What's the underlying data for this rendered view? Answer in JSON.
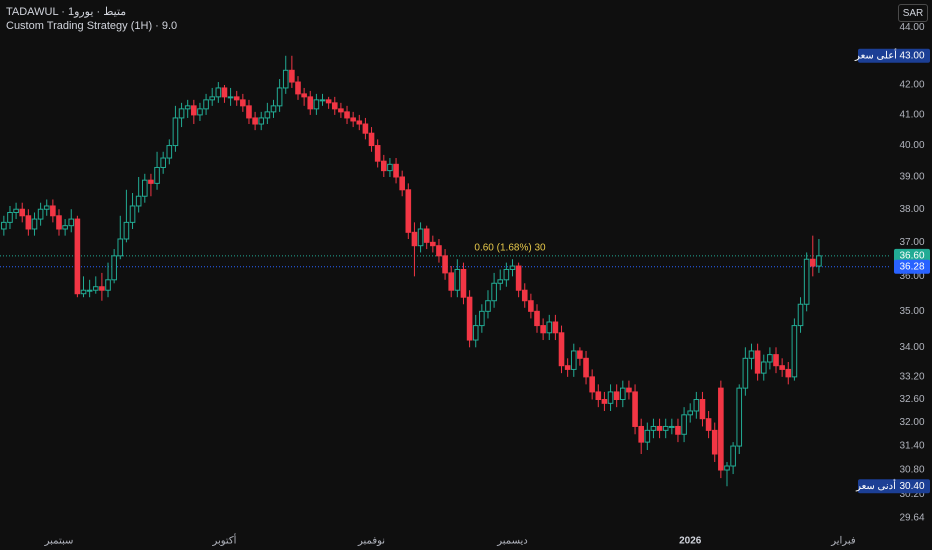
{
  "header": {
    "symbol": "TADAWUL · متيط · يورو1",
    "subtitle": "Custom Trading Strategy (1H) · 9.0",
    "button": "SAR"
  },
  "chart_data": {
    "type": "candlestick",
    "log": true,
    "up_color": "#22ab94",
    "down_color": "#f23645",
    "ylim": [
      29.3,
      44.4
    ],
    "xlim": [
      -0.3,
      144.6
    ],
    "yticks": [
      {
        "value": 44,
        "label": "44.00"
      },
      {
        "value": 43,
        "label": "43.00"
      },
      {
        "value": 42,
        "label": "42.00"
      },
      {
        "value": 41,
        "label": "41.00"
      },
      {
        "value": 40,
        "label": "40.00"
      },
      {
        "value": 39,
        "label": "39.00"
      },
      {
        "value": 38,
        "label": "38.00"
      },
      {
        "value": 37,
        "label": "37.00"
      },
      {
        "value": 36,
        "label": "36.00"
      },
      {
        "value": 35,
        "label": "35.00"
      },
      {
        "value": 34,
        "label": "34.00"
      },
      {
        "value": 33.2,
        "label": "33.20"
      },
      {
        "value": 32.6,
        "label": "32.60"
      },
      {
        "value": 32,
        "label": "32.00"
      },
      {
        "value": 31.4,
        "label": "31.40"
      },
      {
        "value": 30.8,
        "label": "30.80"
      },
      {
        "value": 30.2,
        "label": "30.20"
      },
      {
        "value": 29.64,
        "label": "29.64"
      }
    ],
    "xticks": [
      {
        "value": 9,
        "label": "سبتمبر"
      },
      {
        "value": 36,
        "label": "أكتوبر"
      },
      {
        "value": 60,
        "label": "نوفمبر"
      },
      {
        "value": 83,
        "label": "ديسمبر"
      },
      {
        "value": 112,
        "label": "2026"
      },
      {
        "value": 137,
        "label": "فبراير"
      }
    ],
    "markers": [
      {
        "value": 43,
        "label": "43.00",
        "tag": "أعلى سعر",
        "color": "#1c3f95"
      },
      {
        "value": 30.4,
        "label": "30.40",
        "tag": "أدنى سعر",
        "color": "#1c3f95"
      },
      {
        "value": 36.6,
        "label": "36.60",
        "color": "#22ab94"
      },
      {
        "value": 36.28,
        "label": "36.28",
        "color": "#2962ff"
      }
    ],
    "annotation": "0.60 (1.68%) 30",
    "open": [
      37.4,
      37.6,
      37.9,
      38.0,
      37.8,
      37.4,
      37.7,
      38.0,
      38.1,
      37.8,
      37.4,
      37.5,
      37.7,
      35.5,
      35.6,
      35.6,
      35.7,
      35.6,
      35.9,
      36.6,
      37.1,
      37.6,
      38.1,
      38.4,
      38.9,
      38.8,
      39.3,
      39.6,
      40.0,
      40.9,
      41.2,
      41.3,
      41.0,
      41.2,
      41.5,
      41.6,
      41.9,
      41.6,
      41.6,
      41.5,
      41.3,
      40.9,
      40.7,
      40.9,
      41.1,
      41.3,
      41.9,
      42.5,
      42.1,
      41.7,
      41.6,
      41.2,
      41.5,
      41.5,
      41.4,
      41.2,
      41.1,
      40.9,
      40.8,
      40.7,
      40.4,
      40.0,
      39.5,
      39.2,
      39.4,
      39.0,
      38.6,
      37.3,
      36.9,
      37.4,
      37.0,
      36.9,
      36.6,
      36.1,
      35.6,
      36.2,
      35.4,
      34.2,
      34.6,
      35.0,
      35.3,
      35.8,
      35.9,
      36.2,
      36.3,
      35.6,
      35.3,
      35.0,
      34.6,
      34.4,
      34.7,
      34.4,
      33.5,
      33.4,
      33.9,
      33.7,
      33.2,
      32.8,
      32.6,
      32.5,
      32.8,
      32.6,
      32.9,
      32.8,
      31.9,
      31.5,
      31.8,
      31.9,
      31.8,
      31.9,
      31.9,
      31.7,
      32.2,
      32.3,
      32.6,
      32.1,
      31.8,
      32.9,
      30.8,
      30.9,
      31.4,
      32.9,
      33.7,
      33.9,
      33.3,
      33.6,
      33.8,
      33.5,
      33.4,
      33.2,
      34.6,
      35.2,
      36.5,
      36.3
    ],
    "high": [
      37.8,
      38.1,
      38.2,
      38.2,
      38.0,
      37.9,
      38.2,
      38.3,
      38.3,
      38.0,
      37.7,
      38.0,
      37.8,
      36.0,
      35.9,
      36.0,
      36.1,
      36.4,
      36.8,
      37.8,
      38.6,
      38.5,
      39.0,
      39.1,
      39.1,
      39.8,
      39.8,
      40.2,
      41.3,
      41.4,
      41.5,
      41.5,
      41.4,
      41.7,
      41.9,
      42.1,
      42.0,
      41.9,
      41.8,
      41.7,
      41.5,
      41.1,
      41.1,
      41.4,
      41.5,
      42.2,
      43.0,
      43.0,
      42.3,
      41.9,
      41.8,
      41.7,
      41.7,
      41.6,
      41.6,
      41.4,
      41.3,
      41.1,
      41.0,
      40.9,
      40.6,
      40.2,
      39.7,
      39.6,
      39.6,
      39.2,
      38.8,
      37.6,
      37.6,
      37.5,
      37.2,
      37.1,
      36.8,
      36.3,
      36.5,
      36.4,
      35.6,
      34.9,
      35.2,
      35.6,
      36.1,
      36.2,
      36.4,
      36.5,
      36.4,
      35.8,
      35.5,
      35.2,
      34.8,
      34.9,
      34.9,
      34.6,
      33.7,
      34.1,
      34.0,
      33.9,
      33.4,
      33.0,
      32.8,
      33.0,
      33.0,
      33.1,
      33.1,
      33.0,
      32.1,
      32.0,
      32.1,
      32.1,
      32.1,
      32.1,
      32.1,
      32.4,
      32.5,
      32.8,
      32.8,
      32.3,
      32.0,
      33.1,
      31.0,
      31.5,
      33.0,
      34.0,
      34.1,
      34.1,
      33.8,
      34.0,
      34.0,
      33.7,
      33.6,
      34.8,
      35.4,
      36.7,
      37.2,
      37.1
    ],
    "low": [
      37.2,
      37.4,
      37.7,
      37.6,
      37.2,
      37.2,
      37.5,
      37.8,
      37.6,
      37.2,
      37.2,
      37.3,
      35.4,
      35.4,
      35.4,
      35.5,
      35.3,
      35.4,
      35.8,
      36.5,
      37.0,
      37.4,
      37.9,
      38.2,
      38.4,
      38.6,
      39.1,
      39.4,
      39.8,
      40.6,
      40.9,
      40.7,
      40.8,
      41.0,
      41.3,
      41.4,
      41.4,
      41.3,
      41.3,
      41.1,
      40.7,
      40.5,
      40.5,
      40.7,
      40.9,
      41.1,
      41.7,
      41.9,
      41.5,
      41.3,
      41.0,
      41.0,
      41.3,
      41.2,
      41.0,
      40.9,
      40.7,
      40.6,
      40.5,
      40.2,
      39.8,
      39.3,
      39.0,
      39.0,
      38.8,
      38.4,
      37.1,
      36.0,
      36.7,
      36.8,
      36.7,
      36.4,
      35.9,
      35.4,
      35.4,
      35.2,
      34.0,
      34.0,
      34.4,
      34.8,
      35.1,
      35.6,
      35.7,
      36.0,
      35.4,
      35.1,
      34.8,
      34.4,
      34.2,
      34.2,
      34.2,
      33.3,
      33.2,
      33.2,
      33.5,
      33.0,
      32.6,
      32.4,
      32.3,
      32.3,
      32.4,
      32.4,
      32.6,
      31.7,
      31.2,
      31.3,
      31.6,
      31.6,
      31.6,
      31.7,
      31.5,
      31.5,
      32.0,
      32.1,
      31.9,
      31.6,
      31.0,
      30.6,
      30.4,
      30.7,
      31.2,
      32.7,
      33.4,
      33.1,
      33.1,
      33.4,
      33.3,
      33.2,
      33.0,
      33.1,
      34.4,
      35.0,
      36.0,
      36.1
    ],
    "close": [
      37.6,
      37.9,
      38.0,
      37.8,
      37.4,
      37.7,
      38.0,
      38.1,
      37.8,
      37.4,
      37.5,
      37.7,
      35.5,
      35.6,
      35.6,
      35.7,
      35.6,
      35.9,
      36.6,
      37.1,
      37.6,
      38.1,
      38.4,
      38.9,
      38.8,
      39.3,
      39.6,
      40.0,
      40.9,
      41.2,
      41.3,
      41.0,
      41.2,
      41.5,
      41.6,
      41.9,
      41.6,
      41.6,
      41.5,
      41.3,
      40.9,
      40.7,
      40.9,
      41.1,
      41.3,
      41.9,
      42.5,
      42.1,
      41.7,
      41.6,
      41.2,
      41.5,
      41.5,
      41.4,
      41.2,
      41.1,
      40.9,
      40.8,
      40.7,
      40.4,
      40.0,
      39.5,
      39.2,
      39.4,
      39.0,
      38.6,
      37.3,
      36.9,
      37.4,
      37.0,
      36.9,
      36.6,
      36.1,
      35.6,
      36.2,
      35.4,
      34.2,
      34.6,
      35.0,
      35.3,
      35.8,
      35.9,
      36.2,
      36.3,
      35.6,
      35.3,
      35.0,
      34.6,
      34.4,
      34.7,
      34.4,
      33.5,
      33.4,
      33.9,
      33.7,
      33.2,
      32.8,
      32.6,
      32.5,
      32.8,
      32.6,
      32.9,
      32.8,
      31.9,
      31.5,
      31.8,
      31.9,
      31.8,
      31.9,
      31.9,
      31.7,
      32.2,
      32.3,
      32.6,
      32.1,
      31.8,
      31.2,
      30.8,
      30.9,
      31.4,
      32.9,
      33.7,
      33.9,
      33.3,
      33.6,
      33.8,
      33.5,
      33.4,
      33.2,
      34.6,
      35.2,
      36.5,
      36.3,
      36.6
    ]
  }
}
